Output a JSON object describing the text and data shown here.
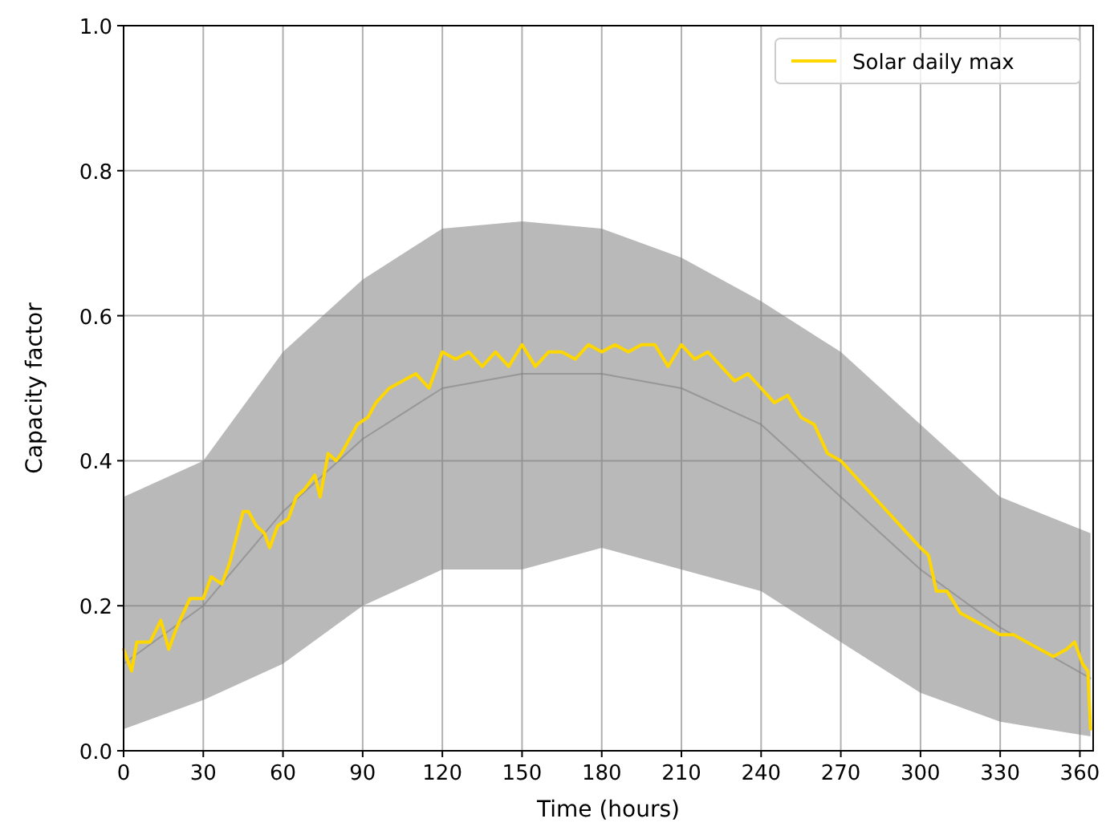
{
  "chart_data": {
    "type": "line",
    "xlabel": "Time (hours)",
    "ylabel": "Capacity factor",
    "xlim": [
      0,
      365
    ],
    "xticks": [
      0,
      30,
      60,
      90,
      120,
      150,
      180,
      210,
      240,
      270,
      300,
      330,
      360
    ],
    "ylim": [
      0,
      1
    ],
    "yticks": [
      {
        "value": 0,
        "label": "0.0"
      },
      {
        "value": 0.2,
        "label": "0.2"
      },
      {
        "value": 0.4,
        "label": "0.4"
      },
      {
        "value": 0.6,
        "label": "0.6"
      },
      {
        "value": 0.8,
        "label": "0.8"
      },
      {
        "value": 1,
        "label": "1.0"
      }
    ],
    "grid": true,
    "legend": "top right",
    "series": [
      {
        "color": "#808080",
        "x": [
          0,
          30,
          60,
          90,
          120,
          150,
          180,
          210,
          240,
          270,
          300,
          330,
          364
        ],
        "values": [
          0.12,
          0.2,
          0.33,
          0.43,
          0.5,
          0.52,
          0.52,
          0.5,
          0.45,
          0.35,
          0.25,
          0.17,
          0.1
        ],
        "lower": [
          0.03,
          0.07,
          0.12,
          0.2,
          0.25,
          0.25,
          0.28,
          0.25,
          0.22,
          0.15,
          0.08,
          0.04,
          0.02
        ],
        "upper": [
          0.35,
          0.4,
          0.55,
          0.65,
          0.72,
          0.73,
          0.72,
          0.68,
          0.62,
          0.55,
          0.45,
          0.35,
          0.3
        ]
      },
      {
        "name": "Solar daily max",
        "color": "#ffd700",
        "x": [
          0,
          3,
          5,
          10,
          14,
          17,
          20,
          25,
          30,
          33,
          37,
          40,
          45,
          47,
          50,
          53,
          55,
          58,
          62,
          65,
          68,
          72,
          74,
          77,
          80,
          82,
          85,
          88,
          92,
          95,
          100,
          105,
          110,
          115,
          120,
          125,
          130,
          135,
          140,
          145,
          150,
          155,
          160,
          165,
          170,
          175,
          180,
          185,
          190,
          195,
          200,
          205,
          210,
          215,
          220,
          225,
          230,
          235,
          240,
          245,
          250,
          255,
          260,
          265,
          270,
          275,
          280,
          285,
          290,
          295,
          300,
          303,
          306,
          310,
          315,
          320,
          325,
          330,
          335,
          340,
          345,
          350,
          355,
          358,
          361,
          363,
          364
        ],
        "values": [
          0.14,
          0.11,
          0.15,
          0.15,
          0.18,
          0.14,
          0.17,
          0.21,
          0.21,
          0.24,
          0.23,
          0.26,
          0.33,
          0.33,
          0.31,
          0.3,
          0.28,
          0.31,
          0.32,
          0.35,
          0.36,
          0.38,
          0.35,
          0.41,
          0.4,
          0.41,
          0.43,
          0.45,
          0.46,
          0.48,
          0.5,
          0.51,
          0.52,
          0.5,
          0.55,
          0.54,
          0.55,
          0.53,
          0.55,
          0.53,
          0.56,
          0.53,
          0.55,
          0.55,
          0.54,
          0.56,
          0.55,
          0.56,
          0.55,
          0.56,
          0.56,
          0.53,
          0.56,
          0.54,
          0.55,
          0.53,
          0.51,
          0.52,
          0.5,
          0.48,
          0.49,
          0.46,
          0.45,
          0.41,
          0.4,
          0.38,
          0.36,
          0.34,
          0.32,
          0.3,
          0.28,
          0.27,
          0.22,
          0.22,
          0.19,
          0.18,
          0.17,
          0.16,
          0.16,
          0.15,
          0.14,
          0.13,
          0.14,
          0.15,
          0.12,
          0.11,
          0.03
        ]
      }
    ]
  }
}
